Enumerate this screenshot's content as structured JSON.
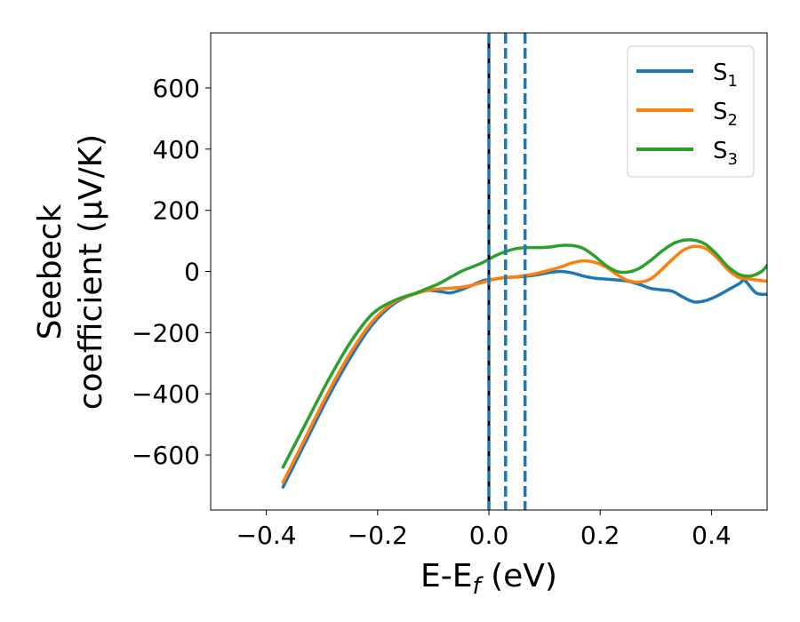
{
  "chart_data": {
    "type": "line",
    "xlabel": "E-E",
    "xlabel_sub": "f",
    "xlabel_unit": " (eV)",
    "ylabel_line1": "Seebeck",
    "ylabel_line2": "coefficient  (μV/K)",
    "xlim": [
      -0.5,
      0.5
    ],
    "ylim": [
      -780,
      780
    ],
    "x_ticks": [
      -0.4,
      -0.2,
      0.0,
      0.2,
      0.4
    ],
    "x_tick_labels": [
      "−0.4",
      "−0.2",
      "0.0",
      "0.2",
      "0.4"
    ],
    "y_ticks": [
      -600,
      -400,
      -200,
      0,
      200,
      400,
      600
    ],
    "y_tick_labels": [
      "−600",
      "−400",
      "−200",
      "0",
      "200",
      "400",
      "600"
    ],
    "grid": false,
    "legend_position": "top-right",
    "series": [
      {
        "name": "S",
        "sub": "1",
        "color": "#1f77b4",
        "x": [
          -0.37,
          -0.33,
          -0.29,
          -0.25,
          -0.21,
          -0.17,
          -0.13,
          -0.11,
          -0.09,
          -0.07,
          -0.05,
          -0.03,
          -0.01,
          0.01,
          0.03,
          0.05,
          0.07,
          0.09,
          0.11,
          0.13,
          0.15,
          0.17,
          0.19,
          0.21,
          0.23,
          0.25,
          0.27,
          0.29,
          0.31,
          0.33,
          0.35,
          0.37,
          0.39,
          0.41,
          0.43,
          0.45,
          0.46,
          0.48,
          0.5
        ],
        "y": [
          -705,
          -560,
          -415,
          -285,
          -175,
          -105,
          -70,
          -62,
          -65,
          -70,
          -60,
          -45,
          -30,
          -25,
          -20,
          -18,
          -15,
          -10,
          -3,
          0,
          -5,
          -15,
          -22,
          -25,
          -28,
          -32,
          -42,
          -55,
          -60,
          -65,
          -85,
          -100,
          -95,
          -80,
          -60,
          -40,
          -30,
          -70,
          -75
        ]
      },
      {
        "name": "S",
        "sub": "2",
        "color": "#ff7f0e",
        "x": [
          -0.37,
          -0.33,
          -0.29,
          -0.25,
          -0.21,
          -0.17,
          -0.13,
          -0.11,
          -0.09,
          -0.07,
          -0.05,
          -0.03,
          -0.01,
          0.01,
          0.03,
          0.05,
          0.07,
          0.09,
          0.11,
          0.13,
          0.15,
          0.17,
          0.19,
          0.21,
          0.23,
          0.25,
          0.27,
          0.29,
          0.31,
          0.33,
          0.35,
          0.37,
          0.39,
          0.41,
          0.43,
          0.45,
          0.47,
          0.49,
          0.5
        ],
        "y": [
          -690,
          -545,
          -400,
          -270,
          -165,
          -100,
          -72,
          -62,
          -57,
          -55,
          -52,
          -45,
          -35,
          -25,
          -20,
          -17,
          -12,
          -5,
          5,
          15,
          28,
          35,
          30,
          15,
          -10,
          -30,
          -35,
          -25,
          5,
          40,
          70,
          82,
          75,
          45,
          5,
          -20,
          -25,
          -30,
          -32
        ]
      },
      {
        "name": "S",
        "sub": "3",
        "color": "#2ca02c",
        "x": [
          -0.37,
          -0.33,
          -0.29,
          -0.25,
          -0.21,
          -0.17,
          -0.13,
          -0.11,
          -0.09,
          -0.07,
          -0.05,
          -0.03,
          -0.01,
          0.01,
          0.03,
          0.05,
          0.07,
          0.09,
          0.11,
          0.13,
          0.15,
          0.17,
          0.19,
          0.21,
          0.23,
          0.25,
          0.27,
          0.29,
          0.31,
          0.33,
          0.35,
          0.37,
          0.39,
          0.41,
          0.43,
          0.45,
          0.47,
          0.49,
          0.5
        ],
        "y": [
          -640,
          -500,
          -360,
          -235,
          -140,
          -95,
          -70,
          -55,
          -40,
          -20,
          0,
          15,
          30,
          50,
          65,
          75,
          78,
          78,
          80,
          85,
          85,
          75,
          50,
          20,
          0,
          -2,
          10,
          35,
          65,
          90,
          102,
          102,
          88,
          55,
          15,
          -10,
          -15,
          0,
          20
        ]
      }
    ],
    "vertical_lines": [
      {
        "x": 0.0,
        "color": "#000000",
        "style": "solid"
      },
      {
        "x": 0.0,
        "color": "#1f77b4",
        "style": "dashed"
      },
      {
        "x": 0.03,
        "color": "#1f77b4",
        "style": "dashed"
      },
      {
        "x": 0.065,
        "color": "#1f77b4",
        "style": "dashed"
      }
    ]
  }
}
